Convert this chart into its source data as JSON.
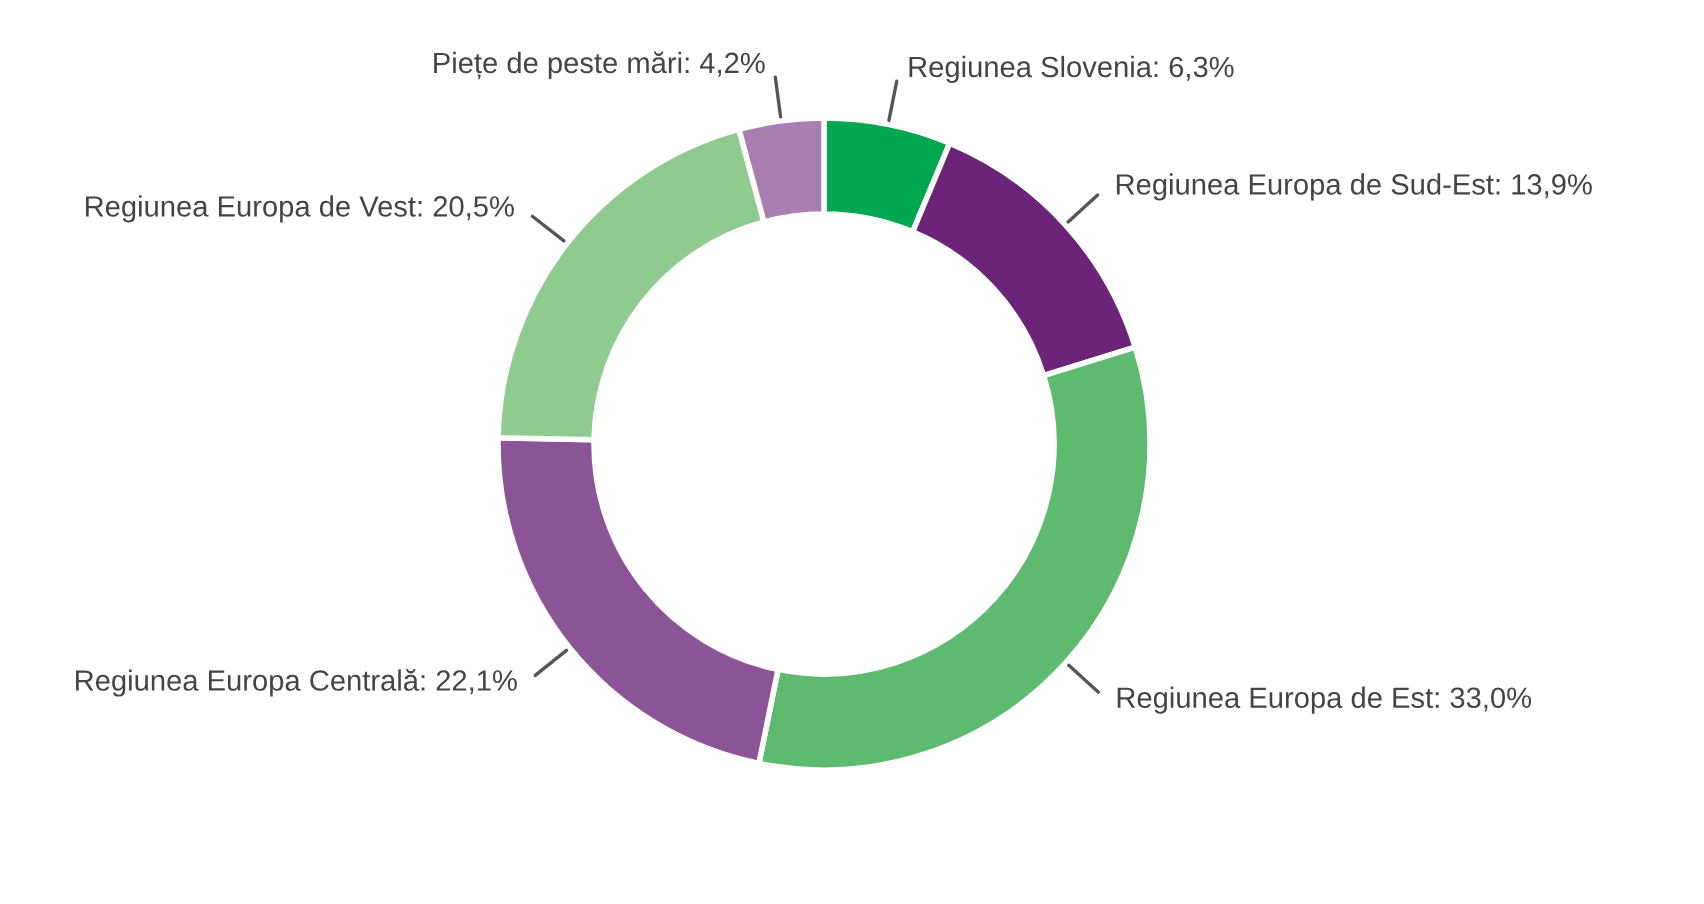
{
  "chart_data": {
    "type": "donut",
    "categories": [
      "Regiunea Slovenia",
      "Regiunea Europa de Sud-Est",
      "Regiunea Europa de Est",
      "Regiunea Europa Centrală",
      "Regiunea Europa de Vest",
      "Piețe de peste mări"
    ],
    "values": [
      6.3,
      13.9,
      33.0,
      22.1,
      20.5,
      4.2
    ],
    "value_labels": [
      "6,3%",
      "13,9%",
      "33,0%",
      "22,1%",
      "20,5%",
      "4,2%"
    ],
    "colors": [
      "#00a650",
      "#6b2477",
      "#5dba6f",
      "#8b5496",
      "#8fca8f",
      "#a97fb1"
    ],
    "legend": false
  }
}
